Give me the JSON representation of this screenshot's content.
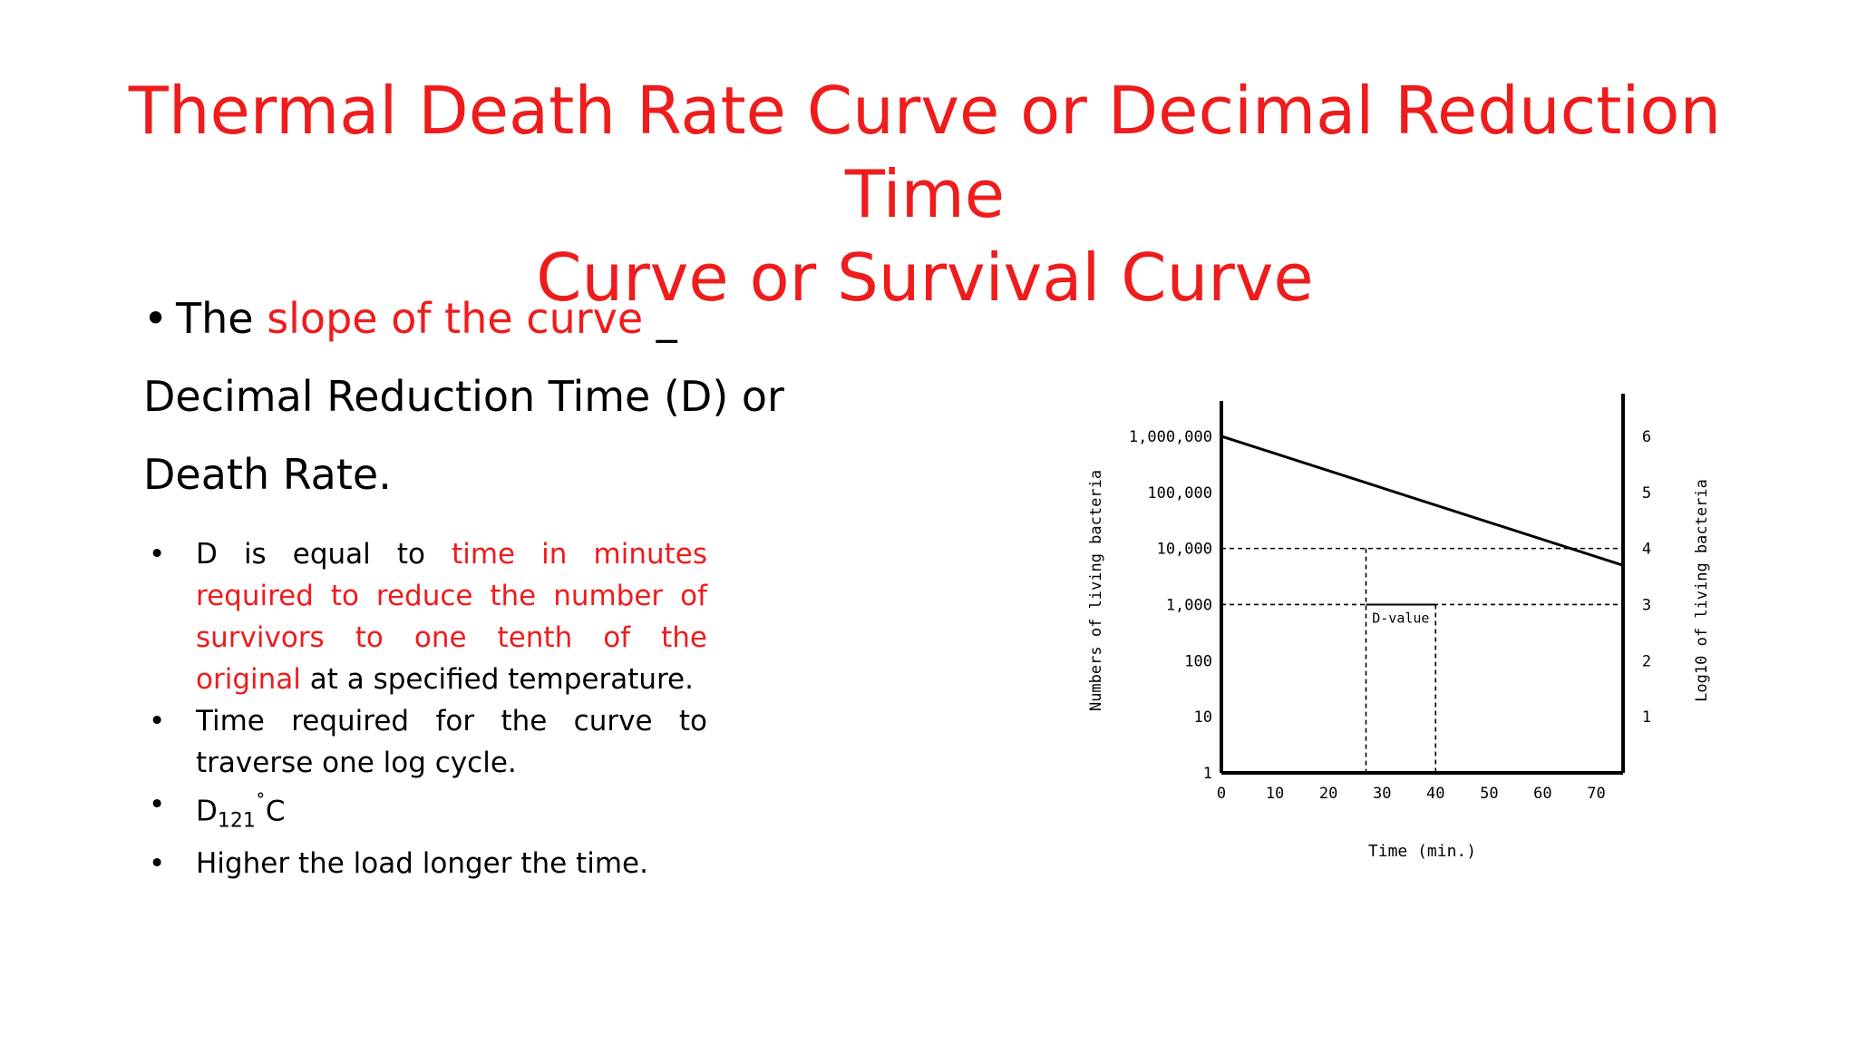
{
  "slide": {
    "title_line1": "Thermal Death Rate Curve or Decimal Reduction Time",
    "title_line2": "Curve or Survival Curve",
    "title_color": "#ee1c1c",
    "bullet_char": "•",
    "main_bullet": {
      "part1": "The ",
      "part2_red": "slope of the curve",
      "part3": " _",
      "line2": "Decimal Reduction Time (D) or",
      "line3": "Death Rate."
    },
    "sub_bullets": {
      "item1_part1": "D is equal to ",
      "item1_red": "time in minutes required to reduce the number of survivors to one tenth of the original",
      "item1_part2": " at a specified temperature.",
      "item2": "Time required for the curve to traverse one log cycle.",
      "item3_base": "D",
      "item3_sub": "121",
      "item3_sup": "˚",
      "item3_tail": "C",
      "item4": "Higher the load longer the time."
    }
  },
  "chart_data": {
    "type": "line",
    "xlabel": "Time (min.)",
    "ylabel_left": "Numbers of living bacteria",
    "ylabel_right": "Log10 of living bacteria",
    "x_ticks": [
      "0",
      "10",
      "20",
      "30",
      "40",
      "50",
      "60",
      "70"
    ],
    "x_tick_values": [
      0,
      10,
      20,
      30,
      40,
      50,
      60,
      70
    ],
    "left_ticks": [
      "1,000,000",
      "100,000",
      "10,000",
      "1,000",
      "100",
      "10",
      "1"
    ],
    "right_ticks": [
      "6",
      "5",
      "4",
      "3",
      "2",
      "1"
    ],
    "log_scale": true,
    "xlim": [
      0,
      75
    ],
    "ylim_log10": [
      0,
      6.5
    ],
    "series": [
      {
        "x": [
          0,
          75
        ],
        "y": [
          1000000,
          5000
        ],
        "color": "#000000"
      }
    ],
    "d_value": {
      "label": "D-value",
      "x_start": 27,
      "x_end": 40,
      "y_upper": 10000,
      "y_lower": 1000
    }
  }
}
